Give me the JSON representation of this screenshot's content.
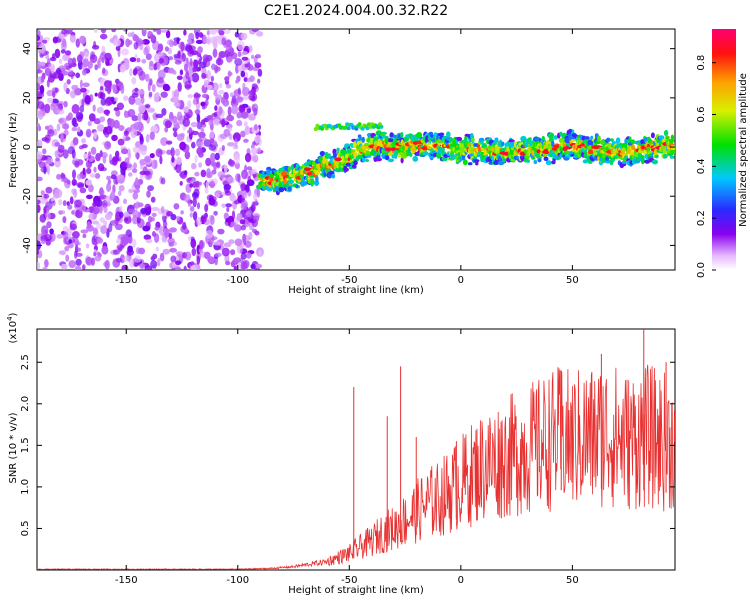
{
  "title": "C2E1.2024.004.00.32.R22",
  "chart_data": [
    {
      "type": "heatmap",
      "xlabel": "Height of straight line (km)",
      "ylabel": "Frequency (Hz)",
      "xlim": [
        -190,
        96
      ],
      "ylim": [
        -50,
        48
      ],
      "xticks": [
        -150,
        -100,
        -50,
        0,
        50
      ],
      "yticks": [
        -40,
        -20,
        0,
        20,
        40
      ],
      "colorbar": {
        "label": "Normalized spectral amplitude",
        "range": [
          0,
          0.93
        ],
        "ticks": [
          "0.0",
          "0.2",
          "0.4",
          "0.6",
          "0.8"
        ],
        "colormap": "rainbow (purple-blue-cyan-green-yellow-orange-red)"
      },
      "regions": {
        "noise_speckle": {
          "x_range": [
            -190,
            -90
          ],
          "y_range": [
            -50,
            48
          ],
          "amplitude": [
            0.0,
            0.15
          ]
        },
        "signal_track": {
          "x": [
            -90,
            -80,
            -70,
            -65,
            -60,
            -55,
            -50,
            -45,
            -40,
            -35,
            -30,
            -20,
            -10,
            0,
            10,
            20,
            30,
            40,
            50,
            60,
            70,
            80,
            90,
            95
          ],
          "y": [
            -14,
            -13,
            -11,
            -9,
            -7,
            -6,
            -4,
            -1,
            0,
            1,
            0,
            1,
            0,
            -1,
            -1,
            -2,
            -1,
            -1,
            1,
            -1,
            -2,
            -1,
            0,
            2
          ],
          "peak_amplitude": 0.93
        }
      }
    },
    {
      "type": "line",
      "xlabel": "Height of straight line (km)",
      "ylabel": "SNR (10 * v/v)",
      "y_multiplier": "(x10^4)",
      "xlim": [
        -190,
        96
      ],
      "ylim": [
        0,
        2.9
      ],
      "xticks": [
        -150,
        -100,
        -50,
        0,
        50
      ],
      "yticks": [
        0.5,
        1.0,
        1.5,
        2.0,
        2.5
      ],
      "ytick_labels": [
        "0.5",
        "1.0",
        "1.5",
        "2.0",
        "2.5"
      ],
      "color": "#e83030",
      "series": [
        {
          "x": [
            -190,
            -150,
            -100,
            -85,
            -75,
            -65,
            -60,
            -55,
            -50,
            -45,
            -40,
            -35,
            -30,
            -25,
            -20,
            -15,
            -10,
            -5,
            0,
            5,
            10,
            15,
            20,
            25,
            30,
            35,
            40,
            45,
            50,
            55,
            60,
            65,
            70,
            75,
            80,
            85,
            90,
            95
          ],
          "values": [
            0.01,
            0.01,
            0.01,
            0.02,
            0.04,
            0.08,
            0.1,
            0.15,
            0.2,
            0.28,
            0.35,
            0.45,
            0.5,
            0.6,
            0.7,
            0.8,
            0.85,
            0.95,
            1.05,
            1.15,
            1.25,
            1.3,
            1.35,
            1.4,
            1.45,
            1.5,
            1.55,
            1.6,
            1.55,
            1.6,
            1.6,
            1.65,
            1.6,
            1.55,
            1.6,
            1.6,
            1.55,
            1.55
          ]
        }
      ],
      "spikes": [
        {
          "x": -48,
          "y": 2.2
        },
        {
          "x": -33,
          "y": 1.85
        },
        {
          "x": -27,
          "y": 2.45
        },
        {
          "x": -20,
          "y": 1.6
        },
        {
          "x": -2,
          "y": 1.55
        },
        {
          "x": 45,
          "y": 2.4
        },
        {
          "x": 63,
          "y": 2.6
        },
        {
          "x": 82,
          "y": 2.9
        },
        {
          "x": 92,
          "y": 2.5
        }
      ]
    }
  ]
}
